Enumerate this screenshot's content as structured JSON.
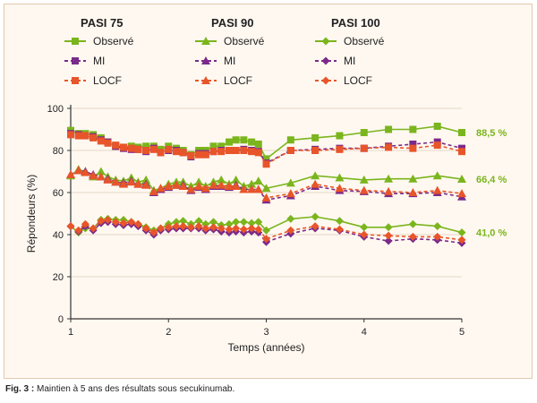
{
  "caption": {
    "prefix": "Fig. 3 :",
    "text": " Maintien à 5 ans des résultats sous secukinumab."
  },
  "colors": {
    "observed": "#7ab51d",
    "mi": "#7a2a8a",
    "locf": "#e8552a",
    "end_label": "#7ab51d"
  },
  "legend": {
    "groups": [
      {
        "title": "PASI 75",
        "marker": "square",
        "items": [
          "Observé",
          "MI",
          "LOCF"
        ]
      },
      {
        "title": "PASI 90",
        "marker": "triangle",
        "items": [
          "Observé",
          "MI",
          "LOCF"
        ]
      },
      {
        "title": "PASI 100",
        "marker": "diamond",
        "items": [
          "Observé",
          "MI",
          "LOCF"
        ]
      }
    ]
  },
  "chart_data": {
    "type": "line",
    "xlabel": "Temps (années)",
    "ylabel": "Répondeurs (%)",
    "xlim": [
      1,
      5
    ],
    "ylim": [
      0,
      100
    ],
    "xticks": [
      1,
      2,
      3,
      4,
      5
    ],
    "yticks": [
      0,
      20,
      40,
      60,
      80,
      100
    ],
    "grid": "horizontal",
    "end_labels": [
      "88,5 %",
      "66,4 %",
      "41,0 %"
    ],
    "x": [
      1.0,
      1.08,
      1.15,
      1.23,
      1.31,
      1.38,
      1.46,
      1.54,
      1.62,
      1.69,
      1.77,
      1.85,
      1.92,
      2.0,
      2.08,
      2.15,
      2.23,
      2.31,
      2.38,
      2.46,
      2.54,
      2.62,
      2.69,
      2.77,
      2.85,
      2.92,
      3.0,
      3.25,
      3.5,
      3.75,
      4.0,
      4.25,
      4.5,
      4.75,
      5.0
    ],
    "series": [
      {
        "name": "PASI 75 Observé",
        "marker": "square",
        "style": "solid",
        "color": "#7ab51d",
        "values": [
          89.5,
          88,
          88,
          87.5,
          86,
          84,
          82,
          81.5,
          82,
          81.5,
          82,
          82,
          80.5,
          82,
          81,
          80,
          78,
          80,
          80,
          82,
          82,
          84,
          85,
          85,
          84,
          83,
          76,
          85,
          86,
          87,
          88.5,
          90,
          90,
          91.5,
          88.5
        ]
      },
      {
        "name": "PASI 75 MI",
        "marker": "square",
        "style": "dashed",
        "color": "#7a2a8a",
        "values": [
          88,
          87.5,
          87,
          86.5,
          85,
          84,
          82,
          81,
          80.5,
          80.5,
          79.5,
          81,
          79,
          80,
          80,
          79,
          77,
          78.5,
          78.5,
          79.5,
          80,
          80,
          80,
          80.5,
          80,
          79.5,
          74,
          80,
          80.5,
          81,
          81,
          82,
          83,
          84,
          81
        ]
      },
      {
        "name": "PASI 75 LOCF",
        "marker": "square",
        "style": "dashed",
        "color": "#e8552a",
        "values": [
          87.5,
          87,
          87,
          86,
          84.5,
          83.5,
          82.5,
          81.5,
          81,
          80.5,
          80,
          80.5,
          79,
          80.5,
          79.5,
          79,
          77.5,
          78,
          78,
          79.5,
          79.5,
          80,
          80,
          80,
          79.5,
          79,
          73.5,
          80,
          80,
          80.5,
          81,
          81.5,
          81,
          82.5,
          79.5
        ]
      },
      {
        "name": "PASI 90 Observé",
        "marker": "triangle",
        "style": "solid",
        "color": "#7ab51d",
        "values": [
          68,
          71,
          70,
          67.5,
          70,
          67.5,
          66,
          65.5,
          67,
          65,
          66,
          61,
          62,
          64,
          65,
          65,
          63,
          65,
          63,
          65,
          66,
          64,
          66,
          63,
          64,
          65.5,
          62,
          64.5,
          68,
          67,
          66,
          66.5,
          66.5,
          68,
          66.4
        ]
      },
      {
        "name": "PASI 90 MI",
        "marker": "triangle",
        "style": "dashed",
        "color": "#7a2a8a",
        "values": [
          68.5,
          70.5,
          70,
          68.5,
          67.5,
          66.5,
          65,
          64.5,
          65.5,
          64,
          64,
          60,
          61.5,
          62.5,
          63.5,
          63.5,
          61,
          62.5,
          61.5,
          63,
          63,
          62.5,
          63.5,
          61.5,
          61.5,
          61.5,
          56.5,
          58.5,
          63,
          61,
          60.5,
          59.5,
          59.5,
          60,
          58
        ]
      },
      {
        "name": "PASI 90 LOCF",
        "marker": "triangle",
        "style": "dashed",
        "color": "#e8552a",
        "values": [
          68.5,
          70.5,
          69.5,
          68,
          67.5,
          66,
          65,
          64,
          65,
          64,
          63.5,
          60.5,
          62,
          63,
          63.5,
          63,
          61.5,
          63,
          62,
          63.5,
          63.5,
          63,
          63,
          61.5,
          61.5,
          61.5,
          57.5,
          59.5,
          64,
          62,
          61,
          60.5,
          60,
          61,
          59.5
        ]
      },
      {
        "name": "PASI 100 Observé",
        "marker": "diamond",
        "style": "solid",
        "color": "#7ab51d",
        "values": [
          44,
          41,
          43,
          43,
          47,
          47.5,
          47,
          47,
          46,
          45,
          43.5,
          42,
          43,
          45,
          46,
          46.5,
          45,
          46.5,
          45,
          46,
          44.5,
          45,
          46,
          46,
          45.5,
          46,
          42,
          47.5,
          48.5,
          46.5,
          43.5,
          43.5,
          45,
          44,
          41
        ]
      },
      {
        "name": "PASI 100 MI",
        "marker": "diamond",
        "style": "dashed",
        "color": "#7a2a8a",
        "values": [
          44,
          41.5,
          44,
          42,
          45.5,
          46,
          45,
          44.5,
          45,
          44,
          42,
          40,
          42,
          42.5,
          43,
          43,
          43,
          43,
          42,
          42.5,
          41.5,
          41,
          41.5,
          41,
          41.5,
          41,
          36.5,
          40.5,
          43,
          42,
          39,
          37,
          38,
          37.5,
          36
        ]
      },
      {
        "name": "PASI 100 LOCF",
        "marker": "diamond",
        "style": "dashed",
        "color": "#e8552a",
        "values": [
          44,
          42,
          45,
          43,
          46.5,
          47,
          46,
          45.5,
          46,
          45,
          43,
          41,
          43,
          43.5,
          44,
          44,
          43.5,
          44,
          43,
          43.5,
          43,
          42.5,
          43,
          42.5,
          43,
          42.5,
          38,
          42,
          44,
          42.5,
          40,
          39.5,
          39,
          39,
          37.5
        ]
      }
    ]
  }
}
